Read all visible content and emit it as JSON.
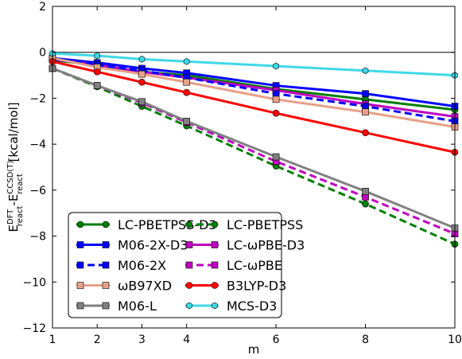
{
  "chart_data": {
    "type": "line",
    "xlabel": "m",
    "ylabel": {
      "main": "E",
      "sup1": "DFT",
      "sub1": "react",
      "sep": "-E",
      "sup2": "CCSD(T)",
      "sub2": "react",
      "unit": " [kcal/mol]"
    },
    "x_categories": [
      1,
      2,
      3,
      4,
      6,
      8,
      10
    ],
    "xlim": [
      1,
      10
    ],
    "ylim": [
      -12,
      2
    ],
    "xticks": [
      "1",
      "2",
      "3",
      "4",
      "6",
      "8",
      "10"
    ],
    "yticks": [
      2,
      0,
      -2,
      -4,
      -6,
      -8,
      -10,
      -12
    ],
    "ytick_labels": [
      "2",
      "0",
      "−2",
      "−4",
      "−6",
      "−8",
      "−10",
      "−12"
    ],
    "zero_line": true,
    "grid": false,
    "legend_placement": "lower-left",
    "series": [
      {
        "name": "LC-PBETPSS-D3",
        "color": "#007f00",
        "dash": false,
        "marker": "circle",
        "values": [
          -0.35,
          -0.55,
          -0.85,
          -1.0,
          -1.6,
          -2.05,
          -2.5
        ]
      },
      {
        "name": "LC-PBETPSS",
        "color": "#007f00",
        "dash": true,
        "marker": "circle",
        "values": [
          -0.7,
          -1.5,
          -2.35,
          -3.2,
          -4.95,
          -6.6,
          -8.35
        ]
      },
      {
        "name": "M06-2X-D3",
        "color": "#0000ff",
        "dash": false,
        "marker": "square",
        "values": [
          -0.25,
          -0.45,
          -0.7,
          -0.9,
          -1.45,
          -1.8,
          -2.35
        ]
      },
      {
        "name": "LC-ωPBE-D3",
        "color": "#bf00bf",
        "dash": false,
        "marker": "square",
        "values": [
          -0.3,
          -0.55,
          -0.85,
          -1.1,
          -1.65,
          -2.25,
          -2.8
        ]
      },
      {
        "name": "M06-2X",
        "color": "#0000ff",
        "dash": true,
        "marker": "square",
        "values": [
          -0.3,
          -0.55,
          -0.8,
          -1.1,
          -1.8,
          -2.35,
          -3.0
        ]
      },
      {
        "name": "LC-ωPBE",
        "color": "#bf00bf",
        "dash": true,
        "marker": "square",
        "values": [
          -0.7,
          -1.45,
          -2.2,
          -3.05,
          -4.75,
          -6.3,
          -7.9
        ]
      },
      {
        "name": "ωB97XD",
        "color": "#e8a088",
        "dash": false,
        "marker": "square",
        "values": [
          -0.25,
          -0.65,
          -0.95,
          -1.3,
          -2.05,
          -2.6,
          -3.25
        ]
      },
      {
        "name": "B3LYP-D3",
        "color": "#ff0000",
        "dash": false,
        "marker": "circle",
        "values": [
          -0.4,
          -0.85,
          -1.3,
          -1.75,
          -2.65,
          -3.5,
          -4.35
        ]
      },
      {
        "name": "M06-L",
        "color": "#808080",
        "dash": false,
        "marker": "square",
        "values": [
          -0.7,
          -1.45,
          -2.15,
          -3.0,
          -4.55,
          -6.05,
          -7.65
        ]
      },
      {
        "name": "MCS-D3",
        "color": "#3fd8e8",
        "dash": false,
        "marker": "hexagon",
        "values": [
          -0.05,
          -0.15,
          -0.3,
          -0.4,
          -0.6,
          -0.8,
          -1.0
        ]
      }
    ]
  }
}
